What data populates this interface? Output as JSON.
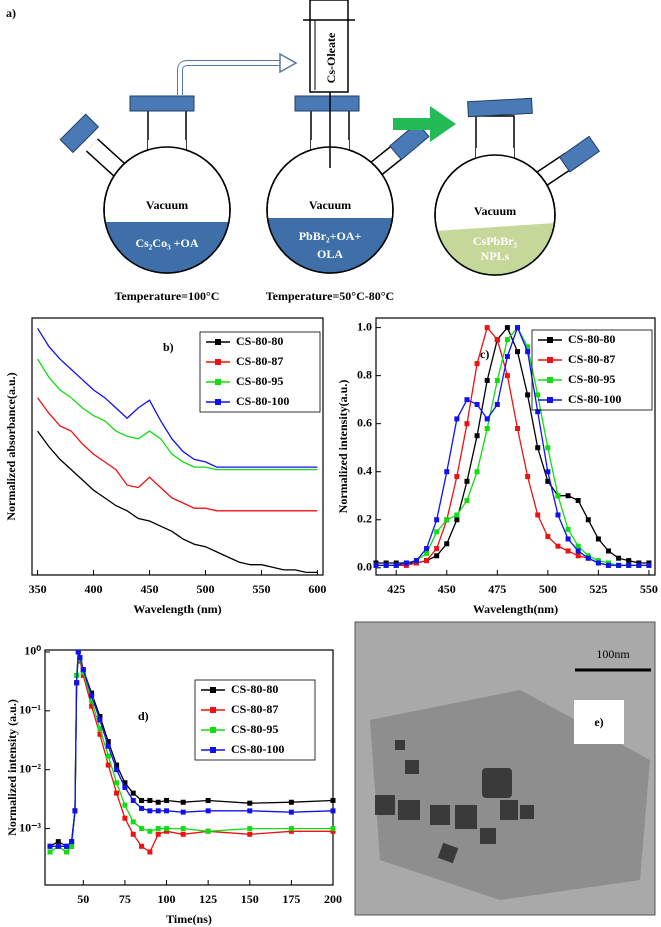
{
  "diagram": {
    "label": "a)",
    "syringe": "Cs-Oleate",
    "flasks": [
      {
        "title": "Vacuum",
        "lines": [
          "Cs₂Co₃ +OA"
        ],
        "caption": "Temperature=100°C"
      },
      {
        "title": "Vacuum",
        "lines": [
          "PbBr₂+OA+",
          "OLA"
        ],
        "caption": "Temperature=50°C-80°C"
      },
      {
        "title": "Vacuum",
        "lines": [
          "CsPbBr₃",
          "NPLs"
        ]
      }
    ]
  },
  "image": {
    "label": "e)",
    "scale_bar": "100nm"
  },
  "chart_data": [
    {
      "type": "line",
      "annotation": "b)",
      "xlabel": "Wavelength (nm)",
      "ylabel": "Normalized absorbance(a.u.)",
      "xlim": [
        345,
        605
      ],
      "xticks": [
        350,
        400,
        450,
        500,
        550,
        600
      ],
      "ylim": [
        0,
        1
      ],
      "legend": "upper right",
      "x": [
        350,
        360,
        370,
        380,
        390,
        400,
        410,
        420,
        430,
        440,
        450,
        460,
        470,
        480,
        490,
        500,
        510,
        520,
        530,
        540,
        550,
        560,
        570,
        580,
        590,
        600
      ],
      "series": [
        {
          "name": "CS-80-80",
          "color": "#000000",
          "values": [
            0.56,
            0.5,
            0.45,
            0.41,
            0.37,
            0.33,
            0.3,
            0.27,
            0.25,
            0.22,
            0.21,
            0.19,
            0.17,
            0.14,
            0.12,
            0.11,
            0.09,
            0.07,
            0.05,
            0.04,
            0.04,
            0.03,
            0.02,
            0.02,
            0.01,
            0.01
          ]
        },
        {
          "name": "CS-80-87",
          "color": "#ee1111",
          "values": [
            0.69,
            0.63,
            0.58,
            0.56,
            0.51,
            0.47,
            0.44,
            0.41,
            0.35,
            0.34,
            0.38,
            0.34,
            0.3,
            0.28,
            0.26,
            0.26,
            0.25,
            0.25,
            0.25,
            0.25,
            0.25,
            0.25,
            0.25,
            0.25,
            0.25,
            0.25
          ]
        },
        {
          "name": "CS-80-95",
          "color": "#11dd11",
          "values": [
            0.84,
            0.77,
            0.72,
            0.69,
            0.65,
            0.62,
            0.6,
            0.56,
            0.54,
            0.53,
            0.56,
            0.53,
            0.47,
            0.44,
            0.42,
            0.42,
            0.41,
            0.41,
            0.41,
            0.41,
            0.41,
            0.41,
            0.41,
            0.41,
            0.41,
            0.41
          ]
        },
        {
          "name": "CS-80-100",
          "color": "#1111ee",
          "values": [
            0.96,
            0.89,
            0.84,
            0.8,
            0.76,
            0.72,
            0.69,
            0.65,
            0.61,
            0.65,
            0.68,
            0.6,
            0.53,
            0.48,
            0.45,
            0.44,
            0.42,
            0.42,
            0.42,
            0.42,
            0.42,
            0.42,
            0.42,
            0.42,
            0.42,
            0.42
          ]
        }
      ]
    },
    {
      "type": "line",
      "marker": "square",
      "annotation": "c)",
      "xlabel": "Wavelength(nm)",
      "ylabel": "Normalized intensity(a.u.)",
      "xlim": [
        415,
        553
      ],
      "xticks": [
        425,
        450,
        475,
        500,
        525,
        550
      ],
      "ylim": [
        -0.03,
        1.04
      ],
      "yticks": [
        {
          "value": 0,
          "label": "0.0"
        },
        0.2,
        0.4,
        0.6,
        0.8,
        {
          "value": 1,
          "label": "1.0"
        }
      ],
      "legend": "upper right",
      "x": [
        415,
        420,
        425,
        430,
        435,
        440,
        445,
        450,
        455,
        460,
        465,
        470,
        475,
        480,
        485,
        490,
        495,
        500,
        505,
        510,
        515,
        520,
        525,
        530,
        535,
        540,
        545,
        550
      ],
      "series": [
        {
          "name": "CS-80-80",
          "color": "#000000",
          "values": [
            0.02,
            0.02,
            0.02,
            0.02,
            0.02,
            0.03,
            0.05,
            0.1,
            0.2,
            0.36,
            0.55,
            0.78,
            0.95,
            1.0,
            0.9,
            0.72,
            0.5,
            0.36,
            0.3,
            0.3,
            0.28,
            0.2,
            0.12,
            0.07,
            0.04,
            0.03,
            0.02,
            0.02
          ]
        },
        {
          "name": "CS-80-87",
          "color": "#ee1111",
          "values": [
            0.01,
            0.01,
            0.01,
            0.01,
            0.02,
            0.03,
            0.08,
            0.2,
            0.38,
            0.6,
            0.85,
            1.0,
            0.95,
            0.8,
            0.58,
            0.38,
            0.22,
            0.13,
            0.09,
            0.07,
            0.05,
            0.04,
            0.02,
            0.01,
            0.01,
            0.01,
            0.01,
            0.01
          ]
        },
        {
          "name": "CS-80-95",
          "color": "#11dd11",
          "values": [
            0.01,
            0.01,
            0.01,
            0.02,
            0.03,
            0.06,
            0.15,
            0.2,
            0.22,
            0.28,
            0.4,
            0.58,
            0.78,
            0.95,
            1.0,
            0.92,
            0.72,
            0.5,
            0.3,
            0.16,
            0.09,
            0.05,
            0.03,
            0.02,
            0.01,
            0.01,
            0.01,
            0.01
          ]
        },
        {
          "name": "CS-80-100",
          "color": "#1111ee",
          "values": [
            0.01,
            0.01,
            0.01,
            0.02,
            0.03,
            0.08,
            0.2,
            0.4,
            0.62,
            0.7,
            0.68,
            0.62,
            0.68,
            0.88,
            1.0,
            0.9,
            0.65,
            0.4,
            0.22,
            0.12,
            0.07,
            0.04,
            0.02,
            0.01,
            0.01,
            0.01,
            0.01,
            0.01
          ]
        }
      ]
    },
    {
      "type": "line",
      "marker": "square",
      "yscale": "log",
      "annotation": "d)",
      "xlabel": "Time(ns)",
      "ylabel": "Normalized intensity (a.u.)",
      "xlim": [
        27,
        200
      ],
      "xticks": [
        50,
        75,
        100,
        125,
        150,
        175,
        200
      ],
      "ylim": [
        0.00011,
        1.08
      ],
      "yticks": [
        {
          "value": 0.001,
          "label": "10⁻³"
        },
        {
          "value": 0.01,
          "label": "10⁻²"
        },
        {
          "value": 0.1,
          "label": "10⁻¹"
        },
        {
          "value": 1,
          "label": "10⁰"
        }
      ],
      "legend": "upper right",
      "x": [
        30,
        35,
        40,
        43,
        45,
        46,
        47,
        48,
        50,
        55,
        60,
        65,
        70,
        75,
        80,
        85,
        90,
        95,
        100,
        110,
        125,
        150,
        175,
        200
      ],
      "series": [
        {
          "name": "CS-80-80",
          "color": "#000000",
          "values": [
            0.0005,
            0.0006,
            0.0005,
            0.0006,
            0.002,
            0.3,
            1,
            0.8,
            0.5,
            0.2,
            0.08,
            0.03,
            0.012,
            0.006,
            0.004,
            0.003,
            0.003,
            0.0028,
            0.003,
            0.0028,
            0.003,
            0.0027,
            0.0028,
            0.003
          ]
        },
        {
          "name": "CS-80-87",
          "color": "#ee1111",
          "values": [
            0.0004,
            0.0005,
            0.0004,
            0.0005,
            0.002,
            0.3,
            1,
            0.7,
            0.4,
            0.12,
            0.04,
            0.012,
            0.004,
            0.0015,
            0.0008,
            0.0005,
            0.0004,
            0.0008,
            0.0009,
            0.0008,
            0.0009,
            0.0008,
            0.0009,
            0.0009
          ]
        },
        {
          "name": "CS-80-95",
          "color": "#11dd11",
          "values": [
            0.0004,
            0.0005,
            0.0004,
            0.0005,
            0.002,
            0.4,
            1,
            0.75,
            0.45,
            0.15,
            0.05,
            0.017,
            0.006,
            0.0025,
            0.0013,
            0.001,
            0.0009,
            0.001,
            0.001,
            0.001,
            0.0009,
            0.001,
            0.001,
            0.001
          ]
        },
        {
          "name": "CS-80-100",
          "color": "#1111ee",
          "values": [
            0.0005,
            0.0005,
            0.0005,
            0.0006,
            0.002,
            0.3,
            1,
            0.8,
            0.5,
            0.18,
            0.07,
            0.025,
            0.01,
            0.005,
            0.003,
            0.0022,
            0.002,
            0.002,
            0.002,
            0.0019,
            0.002,
            0.002,
            0.0019,
            0.002
          ]
        }
      ]
    }
  ]
}
